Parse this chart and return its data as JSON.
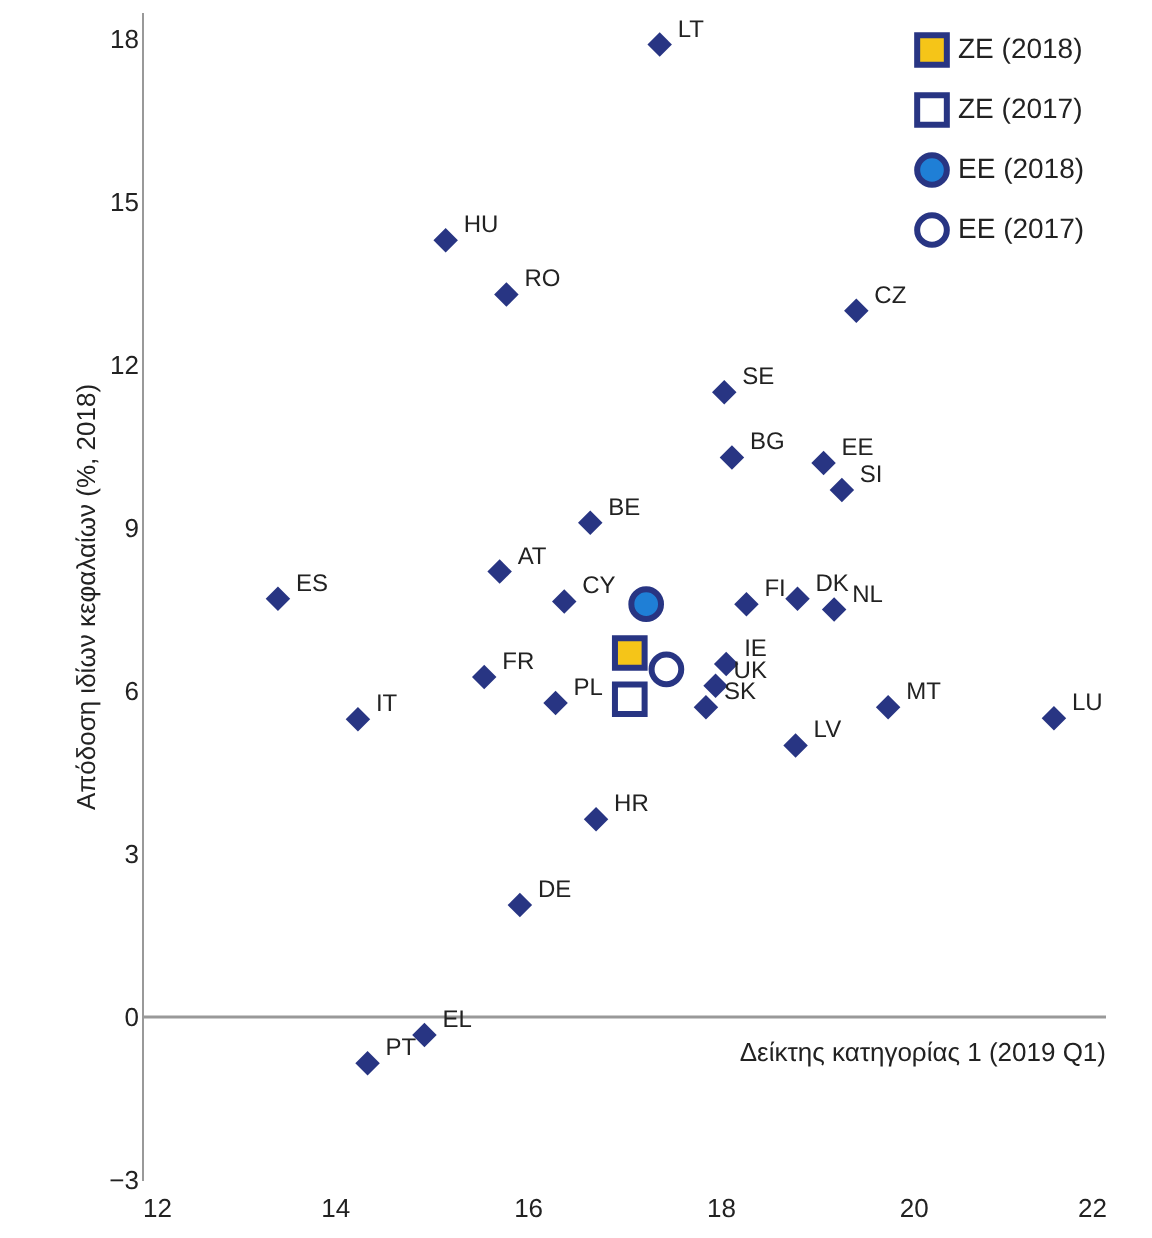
{
  "chart_data": {
    "type": "scatter",
    "xlabel": "Δείκτης κατηγορίας 1 (2019 Q1)",
    "ylabel": "Απόδοση ιδίων κεφαλαίων (%, 2018)",
    "xlim": [
      12,
      22
    ],
    "xticks": [
      12,
      14,
      16,
      18,
      20,
      22
    ],
    "ylim": [
      -3,
      18.5
    ],
    "yticks": [
      -3,
      0,
      3,
      6,
      9,
      12,
      15,
      18
    ],
    "grid": false,
    "legend": "top right",
    "series": [
      {
        "color": "#283583",
        "marker": "diamond",
        "x": [
          17.37,
          15.15,
          15.78,
          19.41,
          18.04,
          18.12,
          19.07,
          19.26,
          16.65,
          15.71,
          13.41,
          16.38,
          15.55,
          16.29,
          14.24,
          16.71,
          15.92,
          14.93,
          14.34,
          18.27,
          18.8,
          19.18,
          18.06,
          17.95,
          17.85,
          19.74,
          21.46,
          18.78
        ],
        "values": [
          17.9,
          14.3,
          13.3,
          13.0,
          11.5,
          10.3,
          10.2,
          9.7,
          9.1,
          8.2,
          7.7,
          7.65,
          6.26,
          5.78,
          5.48,
          3.64,
          2.06,
          -0.33,
          -0.85,
          7.6,
          7.7,
          7.5,
          6.5,
          6.1,
          5.7,
          5.7,
          5.5,
          5.0
        ]
      },
      {
        "name": "ZE (2018)",
        "color": "#f5c518",
        "marker": "square",
        "x": [
          17.06
        ],
        "values": [
          6.7
        ]
      },
      {
        "name": "ZE (2017)",
        "color": "#283583",
        "marker": "square",
        "x": [
          17.06
        ],
        "values": [
          5.85
        ]
      },
      {
        "name": "EE (2018)",
        "color": "#1f7fd6",
        "marker": "circle",
        "x": [
          17.23
        ],
        "values": [
          7.6
        ]
      },
      {
        "name": "EE (2017)",
        "color": "#283583",
        "marker": "circle",
        "x": [
          17.44
        ],
        "values": [
          6.4
        ]
      }
    ],
    "ref_lines": [
      {
        "axis": "y",
        "value": 0,
        "color": "#999999"
      }
    ],
    "annotations": [
      {
        "text": "LT",
        "x": 17.37,
        "y": 17.9
      },
      {
        "text": "HU",
        "x": 15.15,
        "y": 14.3
      },
      {
        "text": "RO",
        "x": 15.78,
        "y": 13.3
      },
      {
        "text": "CZ",
        "x": 19.41,
        "y": 13.0
      },
      {
        "text": "SE",
        "x": 18.04,
        "y": 11.5
      },
      {
        "text": "BG",
        "x": 18.12,
        "y": 10.3
      },
      {
        "text": "EE",
        "x": 19.07,
        "y": 10.2
      },
      {
        "text": "SI",
        "x": 19.26,
        "y": 9.7
      },
      {
        "text": "BE",
        "x": 16.65,
        "y": 9.1
      },
      {
        "text": "AT",
        "x": 15.71,
        "y": 8.2
      },
      {
        "text": "ES",
        "x": 13.41,
        "y": 7.7
      },
      {
        "text": "CY",
        "x": 16.38,
        "y": 7.65
      },
      {
        "text": "FR",
        "x": 15.55,
        "y": 6.26
      },
      {
        "text": "PL",
        "x": 16.29,
        "y": 5.78
      },
      {
        "text": "IT",
        "x": 14.24,
        "y": 5.48
      },
      {
        "text": "HR",
        "x": 16.71,
        "y": 3.64
      },
      {
        "text": "DE",
        "x": 15.92,
        "y": 2.06
      },
      {
        "text": "EL",
        "x": 14.93,
        "y": -0.33
      },
      {
        "text": "PT",
        "x": 14.34,
        "y": -0.85
      },
      {
        "text": "FI",
        "x": 18.27,
        "y": 7.6
      },
      {
        "text": "DK",
        "x": 18.8,
        "y": 7.7
      },
      {
        "text": "NL",
        "x": 19.18,
        "y": 7.5
      },
      {
        "text": "IE",
        "x": 18.06,
        "y": 6.5
      },
      {
        "text": "UK",
        "x": 17.95,
        "y": 6.1
      },
      {
        "text": "SK",
        "x": 17.85,
        "y": 5.7
      },
      {
        "text": "MT",
        "x": 19.74,
        "y": 5.7
      },
      {
        "text": "LU",
        "x": 21.46,
        "y": 5.5
      },
      {
        "text": "LV",
        "x": 18.78,
        "y": 5.0
      }
    ]
  }
}
